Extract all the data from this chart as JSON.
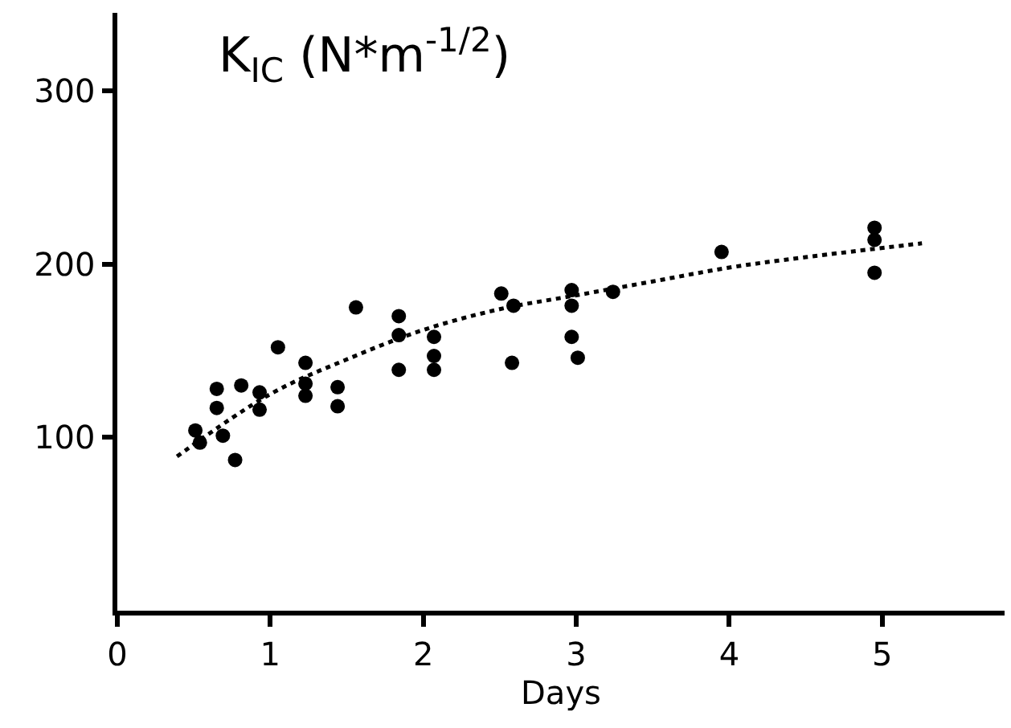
{
  "chart_data": {
    "type": "scatter",
    "ylabel": "K$_{IC}$ (N*m$^{-1/2}$)",
    "xlabel": "Days",
    "xlim": [
      0,
      5.8
    ],
    "xticks": [
      0,
      1,
      2,
      3,
      4,
      5
    ],
    "ylim": [
      0,
      345
    ],
    "yticks": [
      100,
      200,
      300
    ],
    "marker": "circle",
    "series": [
      {
        "color": "#000000",
        "x": [
          0.51,
          0.54,
          0.65,
          0.65,
          0.69,
          0.77,
          0.81,
          0.93,
          0.93,
          1.05,
          1.23,
          1.23,
          1.23,
          1.44,
          1.44,
          1.56,
          1.84,
          1.84,
          1.84,
          2.07,
          2.07,
          2.07,
          2.51,
          2.59,
          2.58,
          2.97,
          2.97,
          2.97,
          3.01,
          3.24,
          3.95,
          4.95,
          4.95,
          4.95
        ],
        "values": [
          104,
          97,
          128,
          117,
          101,
          87,
          130,
          126,
          116,
          152,
          143,
          131,
          124,
          129,
          118,
          175,
          170,
          159,
          139,
          158,
          147,
          139,
          183,
          176,
          143,
          185,
          176,
          158,
          146,
          184,
          207,
          221,
          214,
          195
        ]
      },
      {
        "type": "line",
        "line_style": "dotted",
        "marker": "none",
        "color": "#000000",
        "x": [
          0.39,
          1,
          1.5,
          2,
          2.5,
          3,
          3.5,
          4,
          4.5,
          5.26
        ],
        "values": [
          89,
          125,
          145,
          162,
          174,
          182,
          190,
          198,
          204,
          212
        ]
      }
    ]
  }
}
